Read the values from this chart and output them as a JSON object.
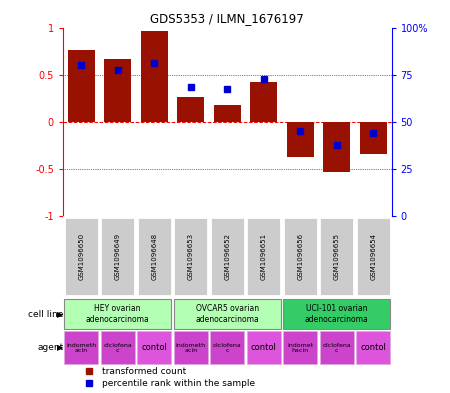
{
  "title": "GDS5353 / ILMN_1676197",
  "samples": [
    "GSM1096650",
    "GSM1096649",
    "GSM1096648",
    "GSM1096653",
    "GSM1096652",
    "GSM1096651",
    "GSM1096656",
    "GSM1096655",
    "GSM1096654"
  ],
  "red_values": [
    0.76,
    0.66,
    0.96,
    0.26,
    0.18,
    0.42,
    -0.38,
    -0.54,
    -0.35
  ],
  "blue_values": [
    0.6,
    0.55,
    0.62,
    0.37,
    0.35,
    0.45,
    -0.1,
    -0.25,
    -0.12
  ],
  "cell_lines": [
    {
      "label": "HEY ovarian\nadenocarcinoma",
      "span": [
        0,
        3
      ],
      "color": "#b3ffb3"
    },
    {
      "label": "OVCAR5 ovarian\nadenocarcinoma",
      "span": [
        3,
        6
      ],
      "color": "#b3ffb3"
    },
    {
      "label": "UCI-101 ovarian\nadenocarcinoma",
      "span": [
        6,
        9
      ],
      "color": "#33cc66"
    }
  ],
  "agents": [
    {
      "label": "indometh\nacin",
      "span": [
        0,
        1
      ]
    },
    {
      "label": "diclofena\nc",
      "span": [
        1,
        2
      ]
    },
    {
      "label": "contol",
      "span": [
        2,
        3
      ]
    },
    {
      "label": "indometh\nacin",
      "span": [
        3,
        4
      ]
    },
    {
      "label": "diclofena\nc",
      "span": [
        4,
        5
      ]
    },
    {
      "label": "contol",
      "span": [
        5,
        6
      ]
    },
    {
      "label": "indomet\nhacin",
      "span": [
        6,
        7
      ]
    },
    {
      "label": "diclofena\nc",
      "span": [
        7,
        8
      ]
    },
    {
      "label": "contol",
      "span": [
        8,
        9
      ]
    }
  ],
  "agent_color": "#cc44cc",
  "contol_color": "#dd55dd",
  "red_color": "#991100",
  "blue_color": "#0000cc",
  "bar_width": 0.75,
  "ylim": [
    -1,
    1
  ],
  "right_yticks": [
    0,
    25,
    50,
    75,
    100
  ],
  "right_yticklabels": [
    "0",
    "25",
    "50",
    "75",
    "100%"
  ],
  "left_yticks": [
    -1,
    -0.5,
    0,
    0.5,
    1
  ],
  "left_yticklabels": [
    "-1",
    "-0.5",
    "0",
    "0.5",
    "1"
  ],
  "legend_labels": [
    "transformed count",
    "percentile rank within the sample"
  ],
  "cell_line_label": "cell line",
  "agent_label": "agent",
  "bg_color": "#ffffff",
  "gsm_bg": "#cccccc",
  "gsm_border": "#ffffff"
}
